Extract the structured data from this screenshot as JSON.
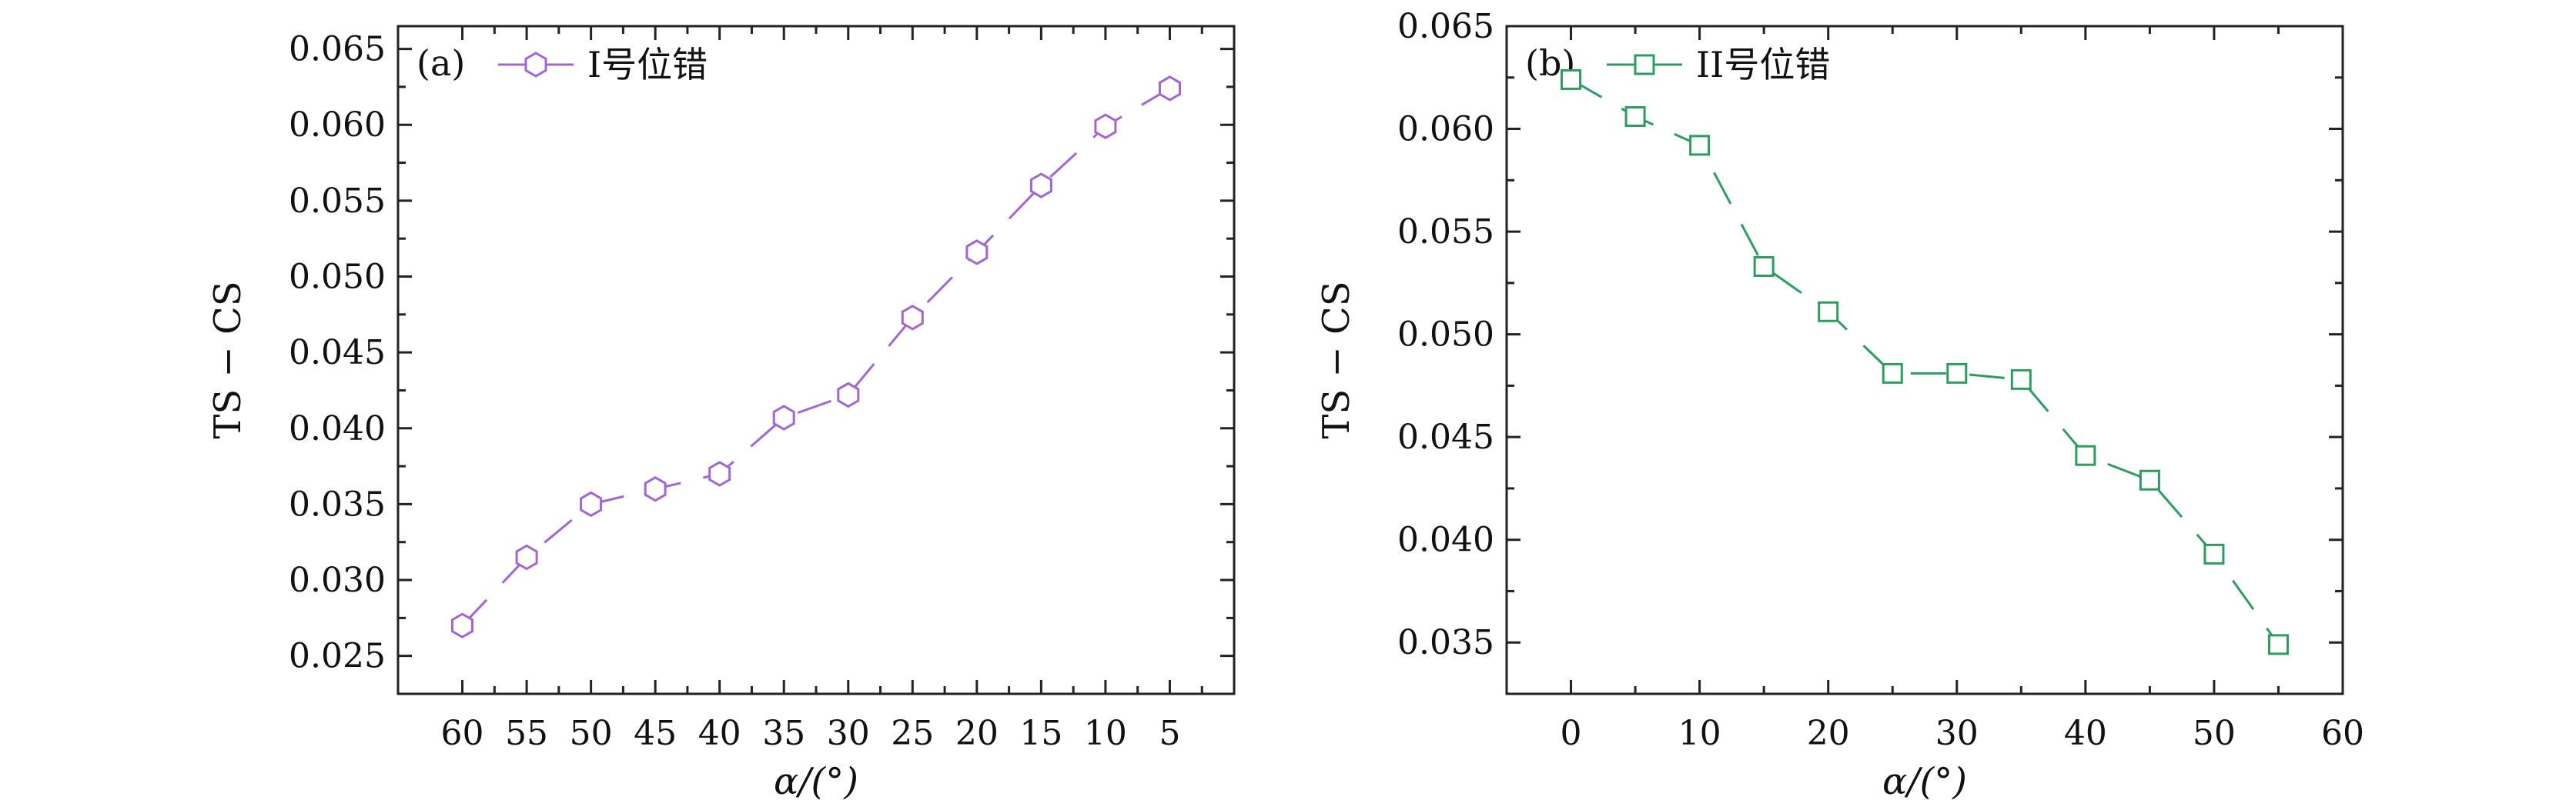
{
  "chart_data": [
    {
      "type": "line",
      "panel_label": "(a)",
      "xlabel": "α/(°)",
      "ylabel": "TS − CS",
      "x_reversed": true,
      "xlim": [
        65,
        0
      ],
      "ylim": [
        0.0225,
        0.0665
      ],
      "xticks": [
        "60",
        "55",
        "50",
        "45",
        "40",
        "35",
        "30",
        "25",
        "20",
        "15",
        "10",
        "5"
      ],
      "yticks": [
        "0.025",
        "0.030",
        "0.035",
        "0.040",
        "0.045",
        "0.050",
        "0.055",
        "0.060",
        "0.065"
      ],
      "legend_position": "top-left",
      "grid": false,
      "series": [
        {
          "name": "I号位错",
          "color": "#a167d0",
          "marker": "hexagon",
          "line_style": "dashed",
          "x": [
            60,
            55,
            50,
            45,
            40,
            35,
            30,
            25,
            20,
            15,
            10,
            5
          ],
          "y": [
            0.027,
            0.0315,
            0.035,
            0.036,
            0.037,
            0.0407,
            0.0422,
            0.0473,
            0.0516,
            0.056,
            0.0599,
            0.0624
          ]
        }
      ]
    },
    {
      "type": "line",
      "panel_label": "(b)",
      "xlabel": "α/(°)",
      "ylabel": "TS − CS",
      "x_reversed": false,
      "xlim": [
        -5,
        60
      ],
      "ylim": [
        0.0325,
        0.065
      ],
      "xticks": [
        "0",
        "10",
        "20",
        "30",
        "40",
        "50",
        "60"
      ],
      "yticks": [
        "0.035",
        "0.040",
        "0.045",
        "0.050",
        "0.055",
        "0.060",
        "0.065"
      ],
      "legend_position": "top-left",
      "grid": false,
      "series": [
        {
          "name": "II号位错",
          "color": "#2e9c62",
          "marker": "square",
          "line_style": "dashed",
          "x": [
            0,
            5,
            10,
            15,
            20,
            25,
            30,
            35,
            40,
            45,
            50,
            55
          ],
          "y": [
            0.0624,
            0.0606,
            0.0592,
            0.0533,
            0.0511,
            0.0481,
            0.0481,
            0.0478,
            0.0441,
            0.0429,
            0.0393,
            0.0349
          ]
        }
      ]
    }
  ]
}
